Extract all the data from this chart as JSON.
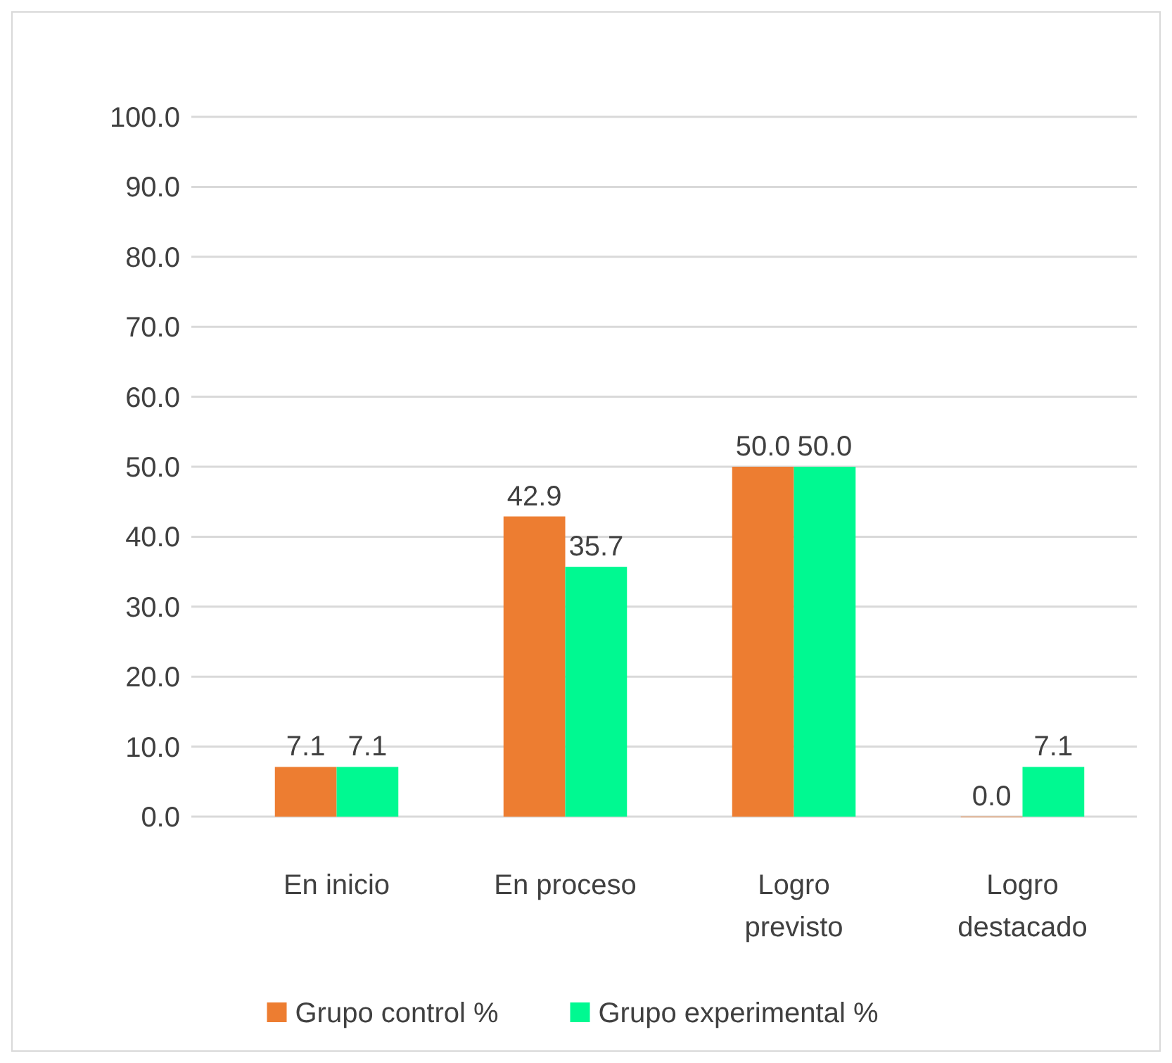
{
  "chart_data": {
    "type": "bar",
    "categories": [
      "En inicio",
      "En proceso",
      "Logro previsto",
      "Logro destacado"
    ],
    "series": [
      {
        "name": "Grupo control %",
        "color": "#ed7d31",
        "values": [
          7.1,
          42.9,
          50.0,
          0.0
        ],
        "value_labels": [
          "7.1",
          "42.9",
          "50.0",
          "0.0"
        ]
      },
      {
        "name": "Grupo experimental %",
        "color": "#00f991",
        "values": [
          7.1,
          35.7,
          50.0,
          7.1
        ],
        "value_labels": [
          "7.1",
          "35.7",
          "50.0",
          "7.1"
        ]
      }
    ],
    "ylim": [
      0,
      100
    ],
    "yticks": [
      {
        "value": 0,
        "label": "0.0"
      },
      {
        "value": 10,
        "label": "10.0"
      },
      {
        "value": 20,
        "label": "20.0"
      },
      {
        "value": 30,
        "label": "30.0"
      },
      {
        "value": 40,
        "label": "40.0"
      },
      {
        "value": 50,
        "label": "50.0"
      },
      {
        "value": 60,
        "label": "60.0"
      },
      {
        "value": 70,
        "label": "70.0"
      },
      {
        "value": 80,
        "label": "80.0"
      },
      {
        "value": 90,
        "label": "90.0"
      },
      {
        "value": 100,
        "label": "100.0"
      }
    ],
    "grid": "y",
    "legend": "bottom"
  }
}
